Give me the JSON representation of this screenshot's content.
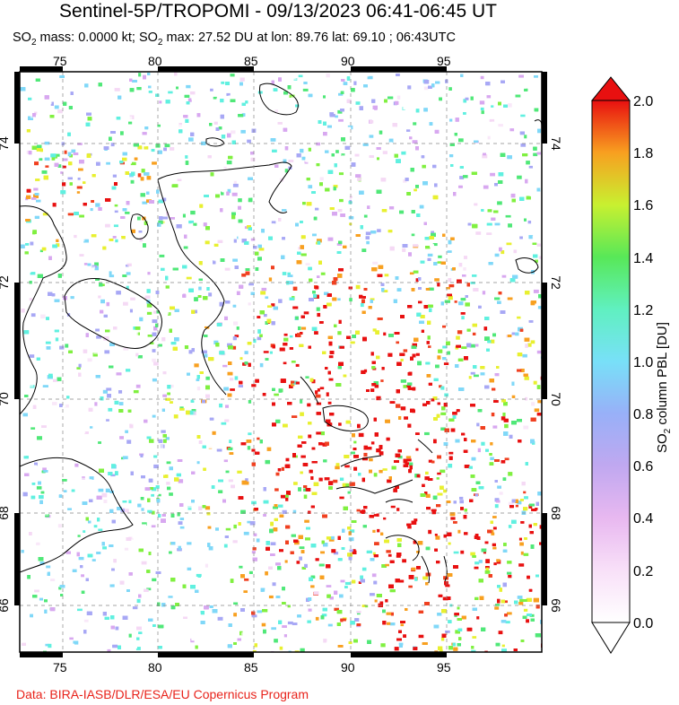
{
  "header": {
    "title": "Sentinel-5P/TROPOMI - 09/13/2023 06:41-06:45 UT",
    "subtitle_parts": {
      "a": "SO",
      "a_sub": "2",
      "b": " mass: 0.0000 kt; SO",
      "b_sub": "2",
      "c": " max: 27.52 DU at lon: 89.76 lat: 69.10 ; 06:43UTC"
    }
  },
  "map": {
    "lon_ticks": [
      "75",
      "80",
      "85",
      "90",
      "95"
    ],
    "lat_ticks": [
      "66",
      "68",
      "70",
      "72",
      "74"
    ]
  },
  "colorbar": {
    "label_main": "SO",
    "label_sub": "2",
    "label_rest": " column PBL [DU]",
    "ticks": [
      "2.0",
      "1.8",
      "1.6",
      "1.4",
      "1.2",
      "1.0",
      "0.8",
      "0.6",
      "0.4",
      "0.2",
      "0.0"
    ],
    "colors": [
      "#ffffff",
      "#f5d9f5",
      "#d8a8f0",
      "#a8a8f5",
      "#80d8f8",
      "#60f0e0",
      "#50e878",
      "#80f040",
      "#e8f030",
      "#f8a020",
      "#f04020",
      "#e81010"
    ]
  },
  "footer": {
    "credit": "Data: BIRA-IASB/DLR/ESA/EU Copernicus Program"
  }
}
